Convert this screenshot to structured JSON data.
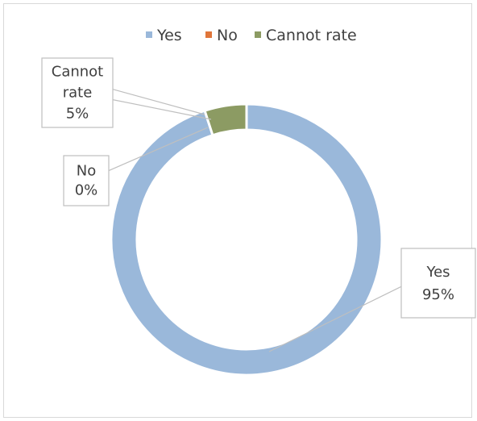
{
  "chart_data": {
    "type": "pie",
    "subtype": "doughnut",
    "categories": [
      "Yes",
      "No",
      "Cannot rate"
    ],
    "values": [
      95,
      0,
      5
    ],
    "unit": "%",
    "colors": {
      "Yes": "#9ab8da",
      "No": "#e0763a",
      "Cannot rate": "#8c9b63"
    },
    "legend_position": "top",
    "legend": [
      "Yes",
      "No",
      "Cannot rate"
    ],
    "data_labels": [
      {
        "category": "Yes",
        "lines": [
          "Yes",
          "95%"
        ]
      },
      {
        "category": "No",
        "lines": [
          "No",
          "0%"
        ]
      },
      {
        "category": "Cannot rate",
        "lines": [
          "Cannot",
          "rate",
          "5%"
        ]
      }
    ]
  }
}
